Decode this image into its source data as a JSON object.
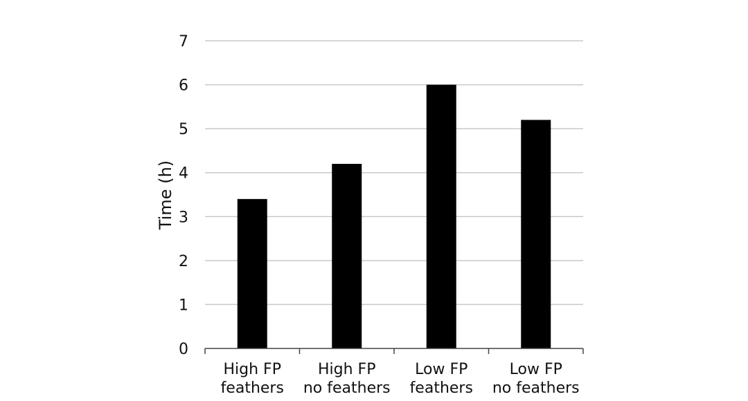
{
  "chart_data": {
    "type": "bar",
    "title": "",
    "xlabel": "",
    "ylabel": "Time (h)",
    "categories": [
      [
        "High FP",
        "feathers"
      ],
      [
        "High FP",
        "no feathers"
      ],
      [
        "Low FP",
        "feathers"
      ],
      [
        "Low FP",
        "no feathers"
      ]
    ],
    "values": [
      3.4,
      4.2,
      6.0,
      5.2
    ],
    "ylim": [
      0,
      7
    ],
    "yticks": [
      "0",
      "1",
      "2",
      "3",
      "4",
      "5",
      "6",
      "7"
    ],
    "grid": "horizontal",
    "legend": "none",
    "colors": {
      "bar": "#000000",
      "grid": "#c8c8c8",
      "axis": "#444444",
      "text": "#111111"
    }
  }
}
